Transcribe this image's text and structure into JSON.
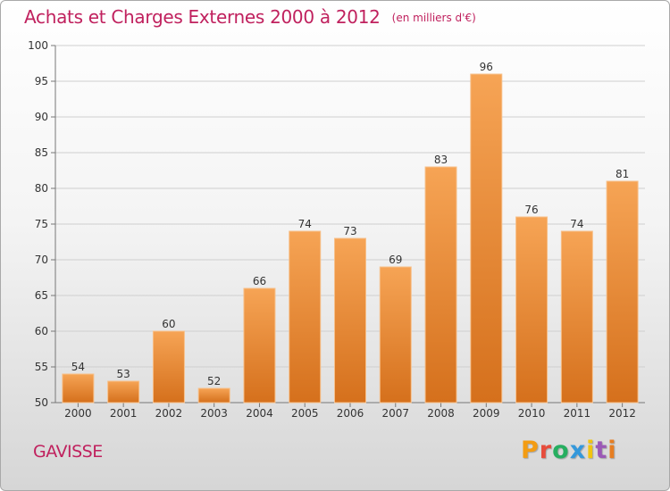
{
  "header": {
    "title": "Achats et Charges Externes 2000 à 2012",
    "unit": "(en milliers d'€)"
  },
  "footer": {
    "commune": "GAVISSE",
    "logo_text": "Proxiti",
    "logo_colors": [
      "#f39c12",
      "#e74c3c",
      "#27ae60",
      "#3498db",
      "#f1c40f",
      "#9b59b6",
      "#e67e22"
    ]
  },
  "colors": {
    "title": "#c0215e",
    "bar_light": "#f6a455",
    "bar_dark": "#d5701c",
    "axis": "#777777",
    "grid": "#cfcfcf"
  },
  "chart_data": {
    "type": "bar",
    "title": "Achats et Charges Externes 2000 à 2012",
    "subtitle": "(en milliers d'€)",
    "xlabel": "",
    "ylabel": "",
    "categories": [
      "2000",
      "2001",
      "2002",
      "2003",
      "2004",
      "2005",
      "2006",
      "2007",
      "2008",
      "2009",
      "2010",
      "2011",
      "2012"
    ],
    "values": [
      54,
      53,
      60,
      52,
      66,
      74,
      73,
      69,
      83,
      96,
      76,
      74,
      81
    ],
    "ylim": [
      50,
      100
    ],
    "yticks": [
      50,
      55,
      60,
      65,
      70,
      75,
      80,
      85,
      90,
      95,
      100
    ],
    "grid": true,
    "data_labels": true
  }
}
